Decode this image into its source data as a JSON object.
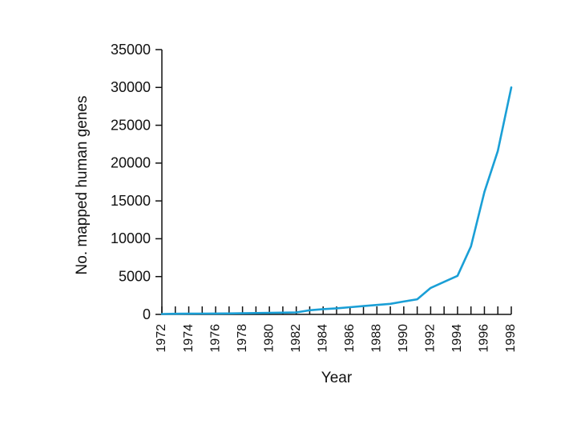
{
  "chart_data": {
    "type": "line",
    "title": "",
    "xlabel": "Year",
    "ylabel": "No. mapped human genes",
    "xlim": [
      1972,
      1998
    ],
    "ylim": [
      0,
      35000
    ],
    "yticks": [
      0,
      5000,
      10000,
      15000,
      20000,
      25000,
      30000,
      35000
    ],
    "xtick_labels": [
      1972,
      1974,
      1976,
      1978,
      1980,
      1982,
      1984,
      1986,
      1988,
      1990,
      1992,
      1994,
      1996,
      1998
    ],
    "x_minor_ticks_every": 1,
    "grid": false,
    "legend": "none",
    "series": [
      {
        "name": "Mapped human genes",
        "color": "#1a9fd6",
        "x": [
          1972,
          1973,
          1974,
          1975,
          1976,
          1977,
          1978,
          1979,
          1980,
          1981,
          1982,
          1983,
          1984,
          1985,
          1986,
          1987,
          1988,
          1989,
          1990,
          1991,
          1992,
          1993,
          1994,
          1995,
          1996,
          1997,
          1998
        ],
        "values": [
          50,
          80,
          100,
          110,
          120,
          130,
          150,
          180,
          200,
          230,
          260,
          550,
          700,
          800,
          950,
          1100,
          1250,
          1400,
          1700,
          2000,
          3500,
          4300,
          5100,
          9000,
          16200,
          21600,
          30000
        ]
      }
    ]
  }
}
